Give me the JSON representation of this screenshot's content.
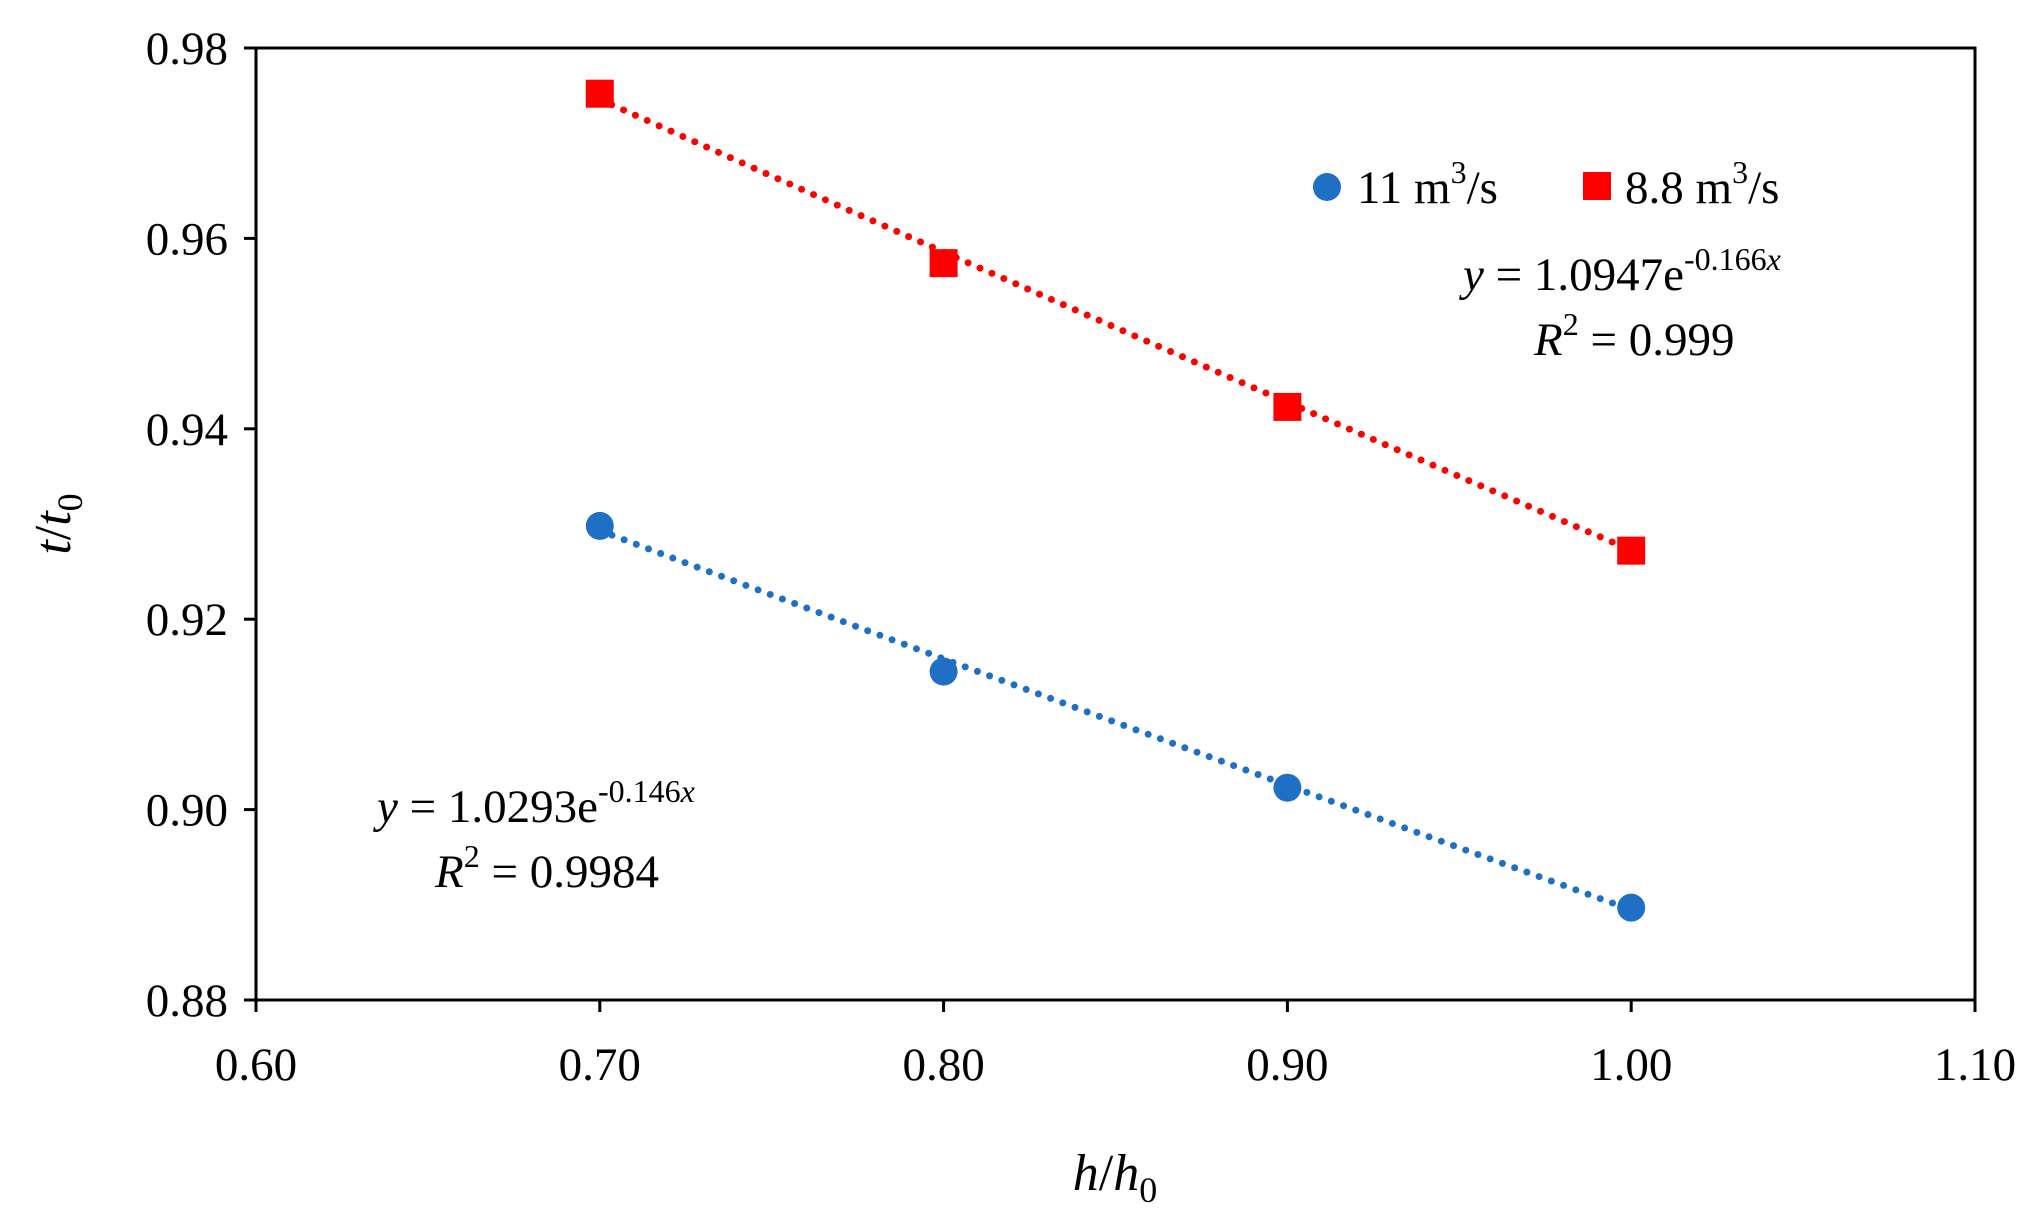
{
  "chart_data": {
    "type": "scatter",
    "title": "",
    "xlabel": {
      "main": "h",
      "sep": "/",
      "base": "h",
      "sub": "0"
    },
    "ylabel": {
      "main": "t",
      "sep": "/",
      "base": "t",
      "sub": "0"
    },
    "xlim": [
      0.6,
      1.1
    ],
    "ylim": [
      0.88,
      0.98
    ],
    "x_ticks": [
      "0.60",
      "0.70",
      "0.80",
      "0.90",
      "1.00",
      "1.10"
    ],
    "y_ticks": [
      "0.88",
      "0.90",
      "0.92",
      "0.94",
      "0.96",
      "0.98"
    ],
    "grid": false,
    "legend_position": "top-right",
    "series": [
      {
        "name": "11 m3/s",
        "legend": {
          "value": "11",
          "unit": "m",
          "sup": "3",
          "rest": "/s"
        },
        "marker": "circle",
        "color": "#1f6fc5",
        "x": [
          0.7,
          0.8,
          0.9,
          1.0
        ],
        "y": [
          0.9298,
          0.9145,
          0.9023,
          0.8897
        ],
        "trendline": {
          "type": "exponential",
          "a": 1.0293,
          "b": -0.146,
          "style": "dotted"
        },
        "equation": {
          "y": "y",
          "eq": " = 1.0293e",
          "exp": "-0.146",
          "x": "x",
          "r2_label": "R",
          "r2_sup": "2",
          "r2_value": " = 0.9984"
        }
      },
      {
        "name": "8.8 m3/s",
        "legend": {
          "value": "8.8",
          "unit": "m",
          "sup": "3",
          "rest": "/s"
        },
        "marker": "square",
        "color": "#ff0000",
        "x": [
          0.7,
          0.8,
          0.9,
          1.0
        ],
        "y": [
          0.9752,
          0.9574,
          0.9423,
          0.9272
        ],
        "trendline": {
          "type": "exponential",
          "a": 1.0947,
          "b": -0.166,
          "style": "dotted"
        },
        "equation": {
          "y": "y",
          "eq": " = 1.0947e",
          "exp": "-0.166",
          "x": "x",
          "r2_label": "R",
          "r2_sup": "2",
          "r2_value": " = 0.999"
        }
      }
    ]
  }
}
